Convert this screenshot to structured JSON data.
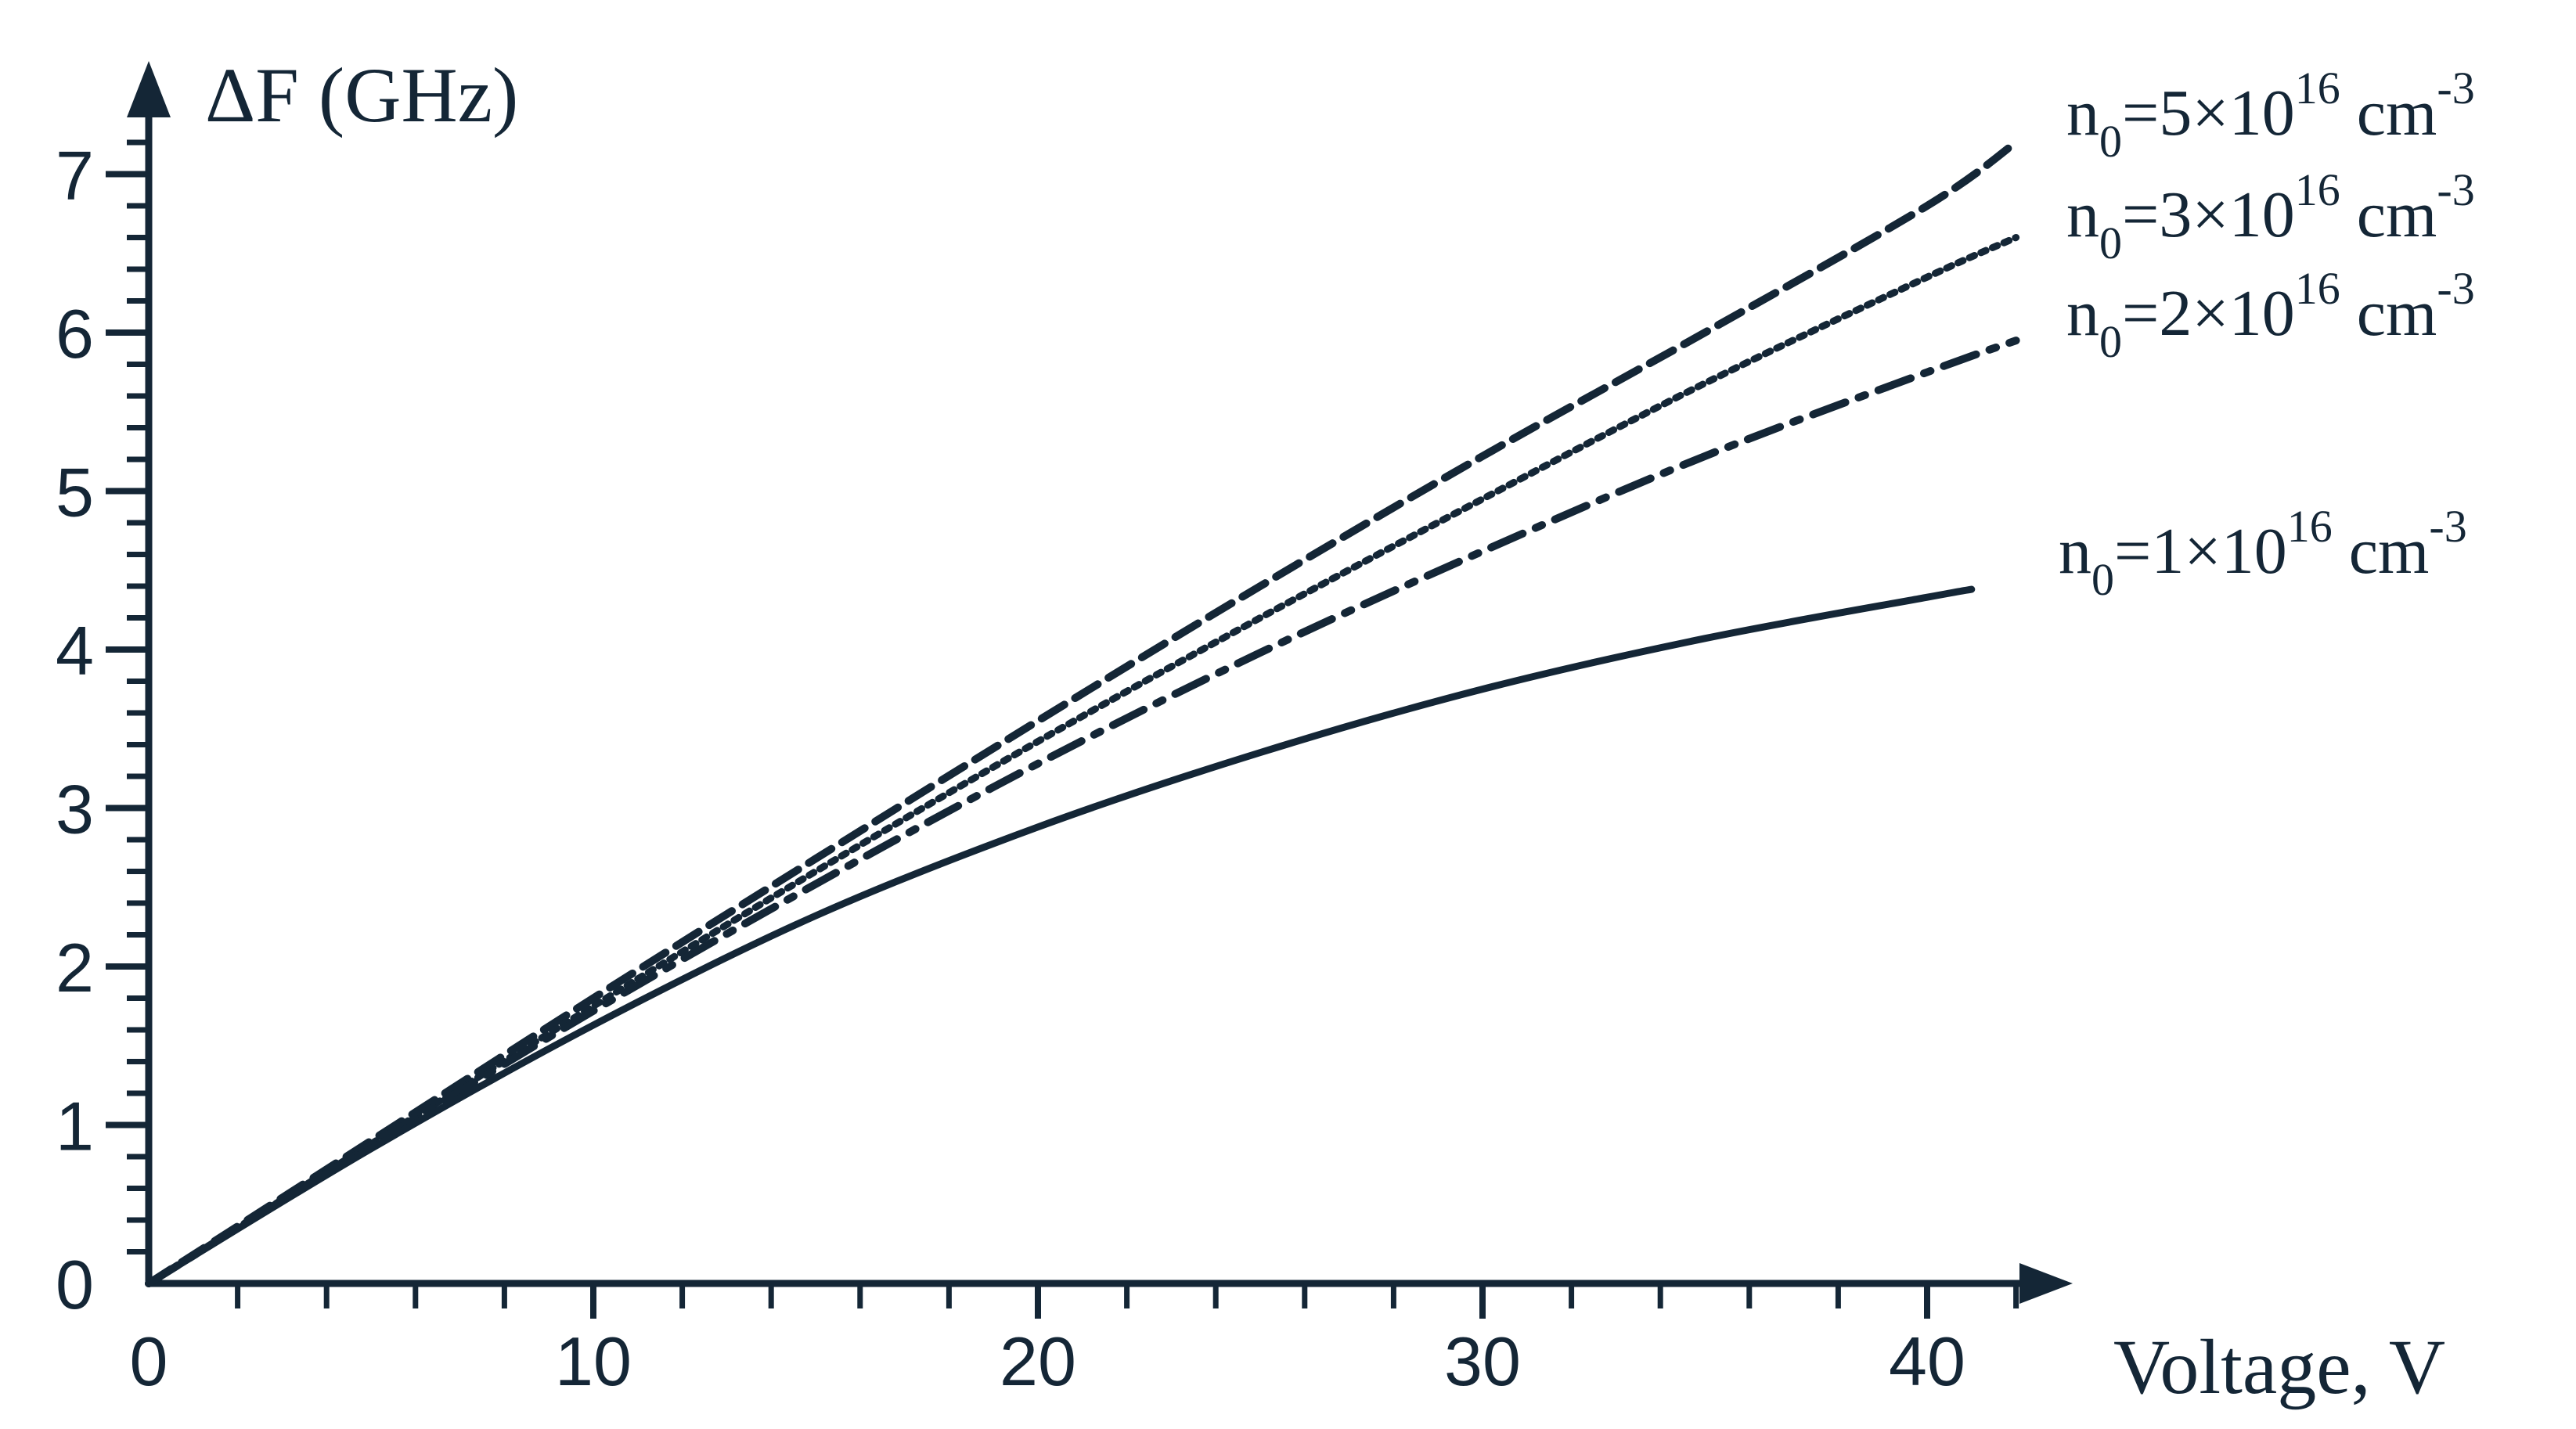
{
  "chart_data": {
    "type": "line",
    "title": "",
    "ylabel": "ΔF (GHz)",
    "xlabel": "Voltage, V",
    "xlim": [
      0,
      43
    ],
    "ylim": [
      0,
      7.5
    ],
    "x_ticks": [
      "0",
      "10",
      "20",
      "30",
      "40"
    ],
    "y_ticks": [
      "0",
      "1",
      "2",
      "3",
      "4",
      "5",
      "6",
      "7"
    ],
    "x_minor_step": 2,
    "y_minor_step": 0.2,
    "grid": false,
    "color": "#142636",
    "series": [
      {
        "name": "n0=5×10^16 cm-3",
        "label": {
          "base": "n",
          "sub": "0",
          "mid": "=5×10",
          "sup": "16",
          "unit": " cm",
          "unit_sup": "-3"
        },
        "style": "dashed",
        "x": [
          0,
          5,
          10,
          15,
          20,
          25,
          30,
          35,
          40,
          42
        ],
        "y": [
          0,
          0.9,
          1.8,
          2.68,
          3.55,
          4.4,
          5.22,
          6.0,
          6.8,
          7.2
        ]
      },
      {
        "name": "n0=3×10^16 cm-3",
        "label": {
          "base": "n",
          "sub": "0",
          "mid": "=3×10",
          "sup": "16",
          "unit": " cm",
          "unit_sup": "-3"
        },
        "style": "dotted",
        "x": [
          0,
          5,
          10,
          15,
          20,
          25,
          30,
          35,
          40,
          42
        ],
        "y": [
          0,
          0.88,
          1.75,
          2.6,
          3.42,
          4.2,
          4.95,
          5.68,
          6.35,
          6.6
        ]
      },
      {
        "name": "n0=2×10^16 cm-3",
        "label": {
          "base": "n",
          "sub": "0",
          "mid": "=2×10",
          "sup": "16",
          "unit": " cm",
          "unit_sup": "-3"
        },
        "style": "dashdot",
        "x": [
          0,
          5,
          10,
          15,
          20,
          25,
          30,
          35,
          40,
          42
        ],
        "y": [
          0,
          0.87,
          1.72,
          2.52,
          3.28,
          3.98,
          4.62,
          5.22,
          5.75,
          5.95
        ]
      },
      {
        "name": "n0=1×10^16 cm-3",
        "label": {
          "base": "n",
          "sub": "0",
          "mid": "=1×10",
          "sup": "16",
          "unit": " cm",
          "unit_sup": "-3"
        },
        "style": "solid",
        "x": [
          0,
          5,
          10,
          15,
          20,
          25,
          30,
          35,
          40,
          41
        ],
        "y": [
          0,
          0.85,
          1.63,
          2.32,
          2.88,
          3.35,
          3.75,
          4.07,
          4.33,
          4.38
        ]
      }
    ]
  }
}
